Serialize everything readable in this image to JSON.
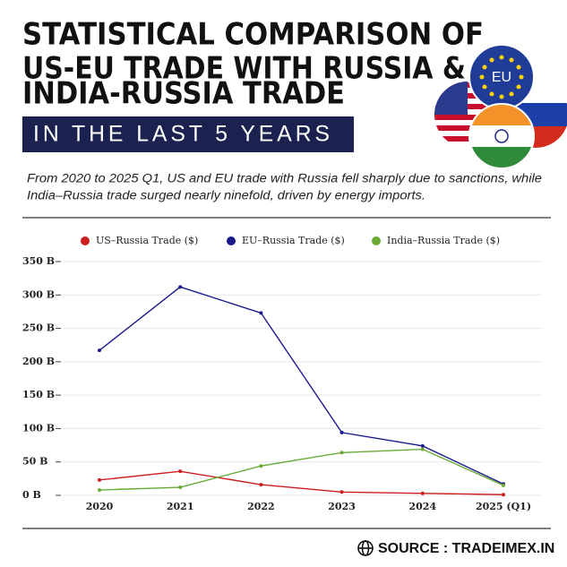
{
  "chart_data": {
    "type": "line",
    "title": [
      "STATISTICAL COMPARISON OF",
      "US-EU TRADE WITH RUSSIA &",
      "INDIA-RUSSIA TRADE"
    ],
    "subtitle": "IN THE LAST 5 YEARS",
    "description": [
      "From 2020 to 2025 Q1, US and EU trade with Russia fell sharply due to sanctions, while",
      "India–Russia trade surged nearly ninefold, driven by energy imports."
    ],
    "categories": [
      "2020",
      "2021",
      "2022",
      "2023",
      "2024",
      "2025 (Q1)"
    ],
    "series": [
      {
        "name": "US–Russia Trade ($)",
        "color": "#cc1f1f",
        "values": [
          23,
          36,
          16,
          5,
          3,
          1
        ]
      },
      {
        "name": "EU–Russia Trade ($)",
        "color": "#1a1a8c",
        "values": [
          217,
          312,
          273,
          94,
          74,
          17
        ]
      },
      {
        "name": "India–Russia Trade ($)",
        "color": "#6aaa35",
        "values": [
          8,
          12,
          44,
          64,
          69,
          15
        ]
      }
    ],
    "ylim": [
      0,
      350
    ],
    "yticks": [
      {
        "value": 0,
        "label": "0 B"
      },
      {
        "value": 50,
        "label": "50 B"
      },
      {
        "value": 100,
        "label": "100 B"
      },
      {
        "value": 150,
        "label": "150 B"
      },
      {
        "value": 200,
        "label": "200 B"
      },
      {
        "value": 250,
        "label": "250 B"
      },
      {
        "value": 300,
        "label": "300 B"
      },
      {
        "value": 350,
        "label": "350 B"
      }
    ],
    "grid": true
  },
  "flag_label": "EU",
  "source": "SOURCE : TRADEIMEX.IN"
}
